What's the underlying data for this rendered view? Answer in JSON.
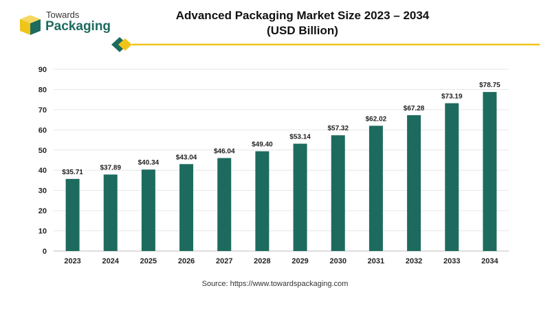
{
  "logo": {
    "line1": "Towards",
    "line2": "Packaging"
  },
  "title": {
    "line1": "Advanced Packaging Market Size 2023 – 2034",
    "line2": "(USD Billion)"
  },
  "source": "Source: https://www.towardspackaging.com",
  "colors": {
    "bar": "#1d6b5e",
    "accent": "#f0c419",
    "logo_green": "#1d6b5e",
    "logo_yellow": "#f0c419"
  },
  "chart_data": {
    "type": "bar",
    "categories": [
      "2023",
      "2024",
      "2025",
      "2026",
      "2027",
      "2028",
      "2029",
      "2030",
      "2031",
      "2032",
      "2033",
      "2034"
    ],
    "values": [
      35.71,
      37.89,
      40.34,
      43.04,
      46.04,
      49.4,
      53.14,
      57.32,
      62.02,
      67.28,
      73.19,
      78.75
    ],
    "data_labels": [
      "$35.71",
      "$37.89",
      "$40.34",
      "$43.04",
      "$46.04",
      "$49.40",
      "$53.14",
      "$57.32",
      "$62.02",
      "$67.28",
      "$73.19",
      "$78.75"
    ],
    "title": "Advanced Packaging Market Size 2023 – 2034 (USD Billion)",
    "xlabel": "",
    "ylabel": "",
    "ylim": [
      0,
      90
    ],
    "yticks": [
      0,
      10,
      20,
      30,
      40,
      50,
      60,
      70,
      80,
      90
    ],
    "grid": true,
    "legend": "none"
  }
}
